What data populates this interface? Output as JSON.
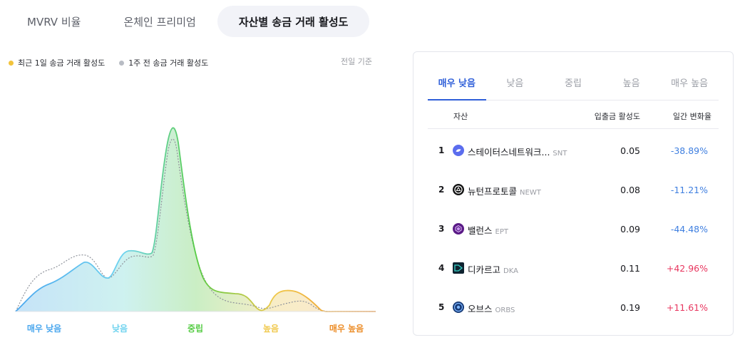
{
  "tabs": [
    {
      "label": "MVRV 비율",
      "active": false
    },
    {
      "label": "온체인 프리미엄",
      "active": false
    },
    {
      "label": "자산별 송금 거래 활성도",
      "active": true
    }
  ],
  "legend": {
    "current": {
      "label": "최근 1일 송금 거래 활성도",
      "color": "#f2c33b"
    },
    "previous": {
      "label": "1주 전 송금 거래 활성도",
      "color": "#b8bcc4"
    }
  },
  "basis_label": "전일 기준",
  "x_labels": [
    {
      "label": "매우 낮음",
      "color": "#4aa7ee"
    },
    {
      "label": "낮음",
      "color": "#6fd3ef"
    },
    {
      "label": "중립",
      "color": "#55cc44"
    },
    {
      "label": "높음",
      "color": "#f0c84a"
    },
    {
      "label": "매우 높음",
      "color": "#ec8c26"
    }
  ],
  "card": {
    "subtabs": [
      {
        "label": "매우 낮음",
        "active": true
      },
      {
        "label": "낮음",
        "active": false
      },
      {
        "label": "중립",
        "active": false
      },
      {
        "label": "높음",
        "active": false
      },
      {
        "label": "매우 높음",
        "active": false
      }
    ],
    "headers": {
      "asset": "자산",
      "activity": "입출금 활성도",
      "change": "일간 변화율"
    },
    "rows": [
      {
        "rank": "1",
        "name": "스테이터스네트워크...",
        "symbol": "SNT",
        "activity": "0.05",
        "change": "-38.89%",
        "icon": "snt-icon"
      },
      {
        "rank": "2",
        "name": "뉴턴프로토콜",
        "symbol": "NEWT",
        "activity": "0.08",
        "change": "-11.21%",
        "icon": "newt-icon"
      },
      {
        "rank": "3",
        "name": "밸런스",
        "symbol": "EPT",
        "activity": "0.09",
        "change": "-44.48%",
        "icon": "ept-icon"
      },
      {
        "rank": "4",
        "name": "디카르고",
        "symbol": "DKA",
        "activity": "0.11",
        "change": "+42.96%",
        "icon": "dka-icon"
      },
      {
        "rank": "5",
        "name": "오브스",
        "symbol": "ORBS",
        "activity": "0.19",
        "change": "+11.61%",
        "icon": "orbs-icon"
      }
    ],
    "colors": {
      "negative": "#3f7fe0",
      "positive": "#e8365f"
    }
  }
}
